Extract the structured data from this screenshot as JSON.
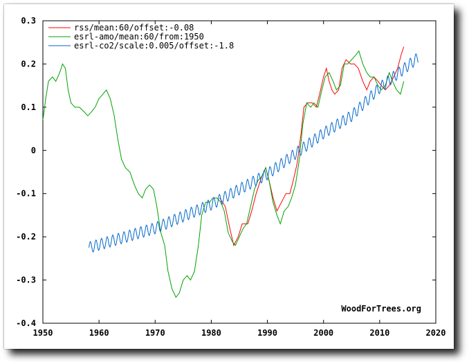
{
  "chart_data": {
    "type": "line",
    "title": "",
    "xlabel": "",
    "ylabel": "",
    "xlim": [
      1950,
      2020
    ],
    "ylim": [
      -0.4,
      0.3
    ],
    "x_ticks": [
      1950,
      1960,
      1970,
      1980,
      1990,
      2000,
      2010,
      2020
    ],
    "y_ticks": [
      -0.4,
      -0.3,
      -0.2,
      -0.1,
      0,
      0.1,
      0.2,
      0.3
    ],
    "x_tick_labels": [
      "1950",
      "1960",
      "1970",
      "1980",
      "1990",
      "2000",
      "2010",
      "2020"
    ],
    "y_tick_labels": [
      "-0.4",
      "-0.3",
      "-0.2",
      "-0.1",
      "0",
      "0.1",
      "0.2",
      "0.3"
    ],
    "grid": false,
    "legend_position": "top-left",
    "watermark": "WoodForTrees.org",
    "series": [
      {
        "name": "rss/mean:60/offset:-0.08",
        "color": "#ff0000",
        "points": [
          [
            1981.5,
            -0.11
          ],
          [
            1982.5,
            -0.13
          ],
          [
            1983.3,
            -0.18
          ],
          [
            1984.0,
            -0.22
          ],
          [
            1984.8,
            -0.2
          ],
          [
            1985.5,
            -0.17
          ],
          [
            1986.5,
            -0.17
          ],
          [
            1987.2,
            -0.14
          ],
          [
            1988.0,
            -0.1
          ],
          [
            1989.0,
            -0.06
          ],
          [
            1989.7,
            -0.04
          ],
          [
            1990.3,
            -0.07
          ],
          [
            1991.0,
            -0.11
          ],
          [
            1991.7,
            -0.14
          ],
          [
            1992.5,
            -0.12
          ],
          [
            1993.3,
            -0.1
          ],
          [
            1994.0,
            -0.1
          ],
          [
            1994.6,
            -0.07
          ],
          [
            1995.3,
            -0.03
          ],
          [
            1996.0,
            0.04
          ],
          [
            1996.5,
            0.1
          ],
          [
            1997.2,
            0.11
          ],
          [
            1998.0,
            0.11
          ],
          [
            1998.7,
            0.1
          ],
          [
            1999.3,
            0.13
          ],
          [
            2000.0,
            0.17
          ],
          [
            2000.5,
            0.19
          ],
          [
            2001.0,
            0.16
          ],
          [
            2001.5,
            0.14
          ],
          [
            2002.0,
            0.13
          ],
          [
            2002.7,
            0.14
          ],
          [
            2003.3,
            0.19
          ],
          [
            2004.0,
            0.21
          ],
          [
            2004.8,
            0.2
          ],
          [
            2005.5,
            0.2
          ],
          [
            2006.2,
            0.19
          ],
          [
            2007.0,
            0.16
          ],
          [
            2007.7,
            0.14
          ],
          [
            2008.3,
            0.16
          ],
          [
            2009.0,
            0.17
          ],
          [
            2009.7,
            0.16
          ],
          [
            2010.3,
            0.15
          ],
          [
            2011.0,
            0.14
          ],
          [
            2011.7,
            0.15
          ],
          [
            2012.5,
            0.17
          ],
          [
            2013.2,
            0.19
          ],
          [
            2013.8,
            0.22
          ],
          [
            2014.3,
            0.24
          ]
        ]
      },
      {
        "name": "esrl-amo/mean:60/from:1950",
        "color": "#00a000",
        "points": [
          [
            1950.0,
            0.07
          ],
          [
            1950.5,
            0.12
          ],
          [
            1951.0,
            0.16
          ],
          [
            1951.7,
            0.17
          ],
          [
            1952.3,
            0.16
          ],
          [
            1953.0,
            0.18
          ],
          [
            1953.5,
            0.2
          ],
          [
            1954.0,
            0.19
          ],
          [
            1954.5,
            0.14
          ],
          [
            1955.0,
            0.11
          ],
          [
            1955.7,
            0.1
          ],
          [
            1956.5,
            0.1
          ],
          [
            1957.3,
            0.09
          ],
          [
            1958.0,
            0.08
          ],
          [
            1958.7,
            0.09
          ],
          [
            1959.3,
            0.1
          ],
          [
            1960.0,
            0.12
          ],
          [
            1960.7,
            0.13
          ],
          [
            1961.3,
            0.14
          ],
          [
            1962.0,
            0.12
          ],
          [
            1962.7,
            0.08
          ],
          [
            1963.3,
            0.03
          ],
          [
            1964.0,
            -0.02
          ],
          [
            1964.7,
            -0.04
          ],
          [
            1965.5,
            -0.05
          ],
          [
            1966.3,
            -0.08
          ],
          [
            1967.0,
            -0.1
          ],
          [
            1967.7,
            -0.11
          ],
          [
            1968.3,
            -0.09
          ],
          [
            1969.0,
            -0.08
          ],
          [
            1969.7,
            -0.09
          ],
          [
            1970.3,
            -0.13
          ],
          [
            1971.0,
            -0.19
          ],
          [
            1971.7,
            -0.22
          ],
          [
            1972.3,
            -0.28
          ],
          [
            1973.0,
            -0.32
          ],
          [
            1973.7,
            -0.34
          ],
          [
            1974.3,
            -0.33
          ],
          [
            1975.0,
            -0.3
          ],
          [
            1975.7,
            -0.29
          ],
          [
            1976.3,
            -0.3
          ],
          [
            1977.0,
            -0.28
          ],
          [
            1977.7,
            -0.22
          ],
          [
            1978.3,
            -0.15
          ],
          [
            1979.0,
            -0.12
          ],
          [
            1979.7,
            -0.12
          ],
          [
            1980.3,
            -0.11
          ],
          [
            1981.0,
            -0.11
          ],
          [
            1981.7,
            -0.12
          ],
          [
            1982.3,
            -0.14
          ],
          [
            1983.0,
            -0.19
          ],
          [
            1983.7,
            -0.21
          ],
          [
            1984.3,
            -0.22
          ],
          [
            1985.0,
            -0.2
          ],
          [
            1985.7,
            -0.18
          ],
          [
            1986.3,
            -0.17
          ],
          [
            1987.0,
            -0.13
          ],
          [
            1987.7,
            -0.09
          ],
          [
            1988.3,
            -0.07
          ],
          [
            1989.0,
            -0.06
          ],
          [
            1989.7,
            -0.04
          ],
          [
            1990.3,
            -0.07
          ],
          [
            1991.0,
            -0.12
          ],
          [
            1991.7,
            -0.15
          ],
          [
            1992.3,
            -0.17
          ],
          [
            1993.0,
            -0.14
          ],
          [
            1993.7,
            -0.13
          ],
          [
            1994.3,
            -0.11
          ],
          [
            1995.0,
            -0.08
          ],
          [
            1995.7,
            -0.02
          ],
          [
            1996.3,
            0.06
          ],
          [
            1997.0,
            0.11
          ],
          [
            1997.7,
            0.1
          ],
          [
            1998.3,
            0.11
          ],
          [
            1999.0,
            0.1
          ],
          [
            1999.7,
            0.14
          ],
          [
            2000.3,
            0.17
          ],
          [
            2001.0,
            0.18
          ],
          [
            2001.7,
            0.16
          ],
          [
            2002.3,
            0.14
          ],
          [
            2003.0,
            0.15
          ],
          [
            2003.7,
            0.2
          ],
          [
            2004.3,
            0.2
          ],
          [
            2005.0,
            0.21
          ],
          [
            2005.7,
            0.22
          ],
          [
            2006.3,
            0.23
          ],
          [
            2007.0,
            0.2
          ],
          [
            2007.7,
            0.18
          ],
          [
            2008.3,
            0.17
          ],
          [
            2009.0,
            0.17
          ],
          [
            2009.7,
            0.15
          ],
          [
            2010.3,
            0.14
          ],
          [
            2011.0,
            0.15
          ],
          [
            2011.7,
            0.18
          ],
          [
            2012.3,
            0.16
          ],
          [
            2013.0,
            0.14
          ],
          [
            2013.7,
            0.13
          ],
          [
            2014.3,
            0.16
          ]
        ]
      },
      {
        "name": "esrl-co2/scale:0.005/offset:-1.8",
        "color": "#0066cc",
        "seasonal": true,
        "start_year": 1958.2,
        "end_year": 2016.9,
        "trend_points": [
          [
            1958.2,
            -0.225
          ],
          [
            1970.0,
            -0.18
          ],
          [
            1980.0,
            -0.125
          ],
          [
            1990.0,
            -0.055
          ],
          [
            2000.0,
            0.04
          ],
          [
            2005.0,
            0.08
          ],
          [
            2010.0,
            0.145
          ],
          [
            2016.9,
            0.215
          ]
        ],
        "seasonal_amplitude": 0.013
      }
    ]
  }
}
